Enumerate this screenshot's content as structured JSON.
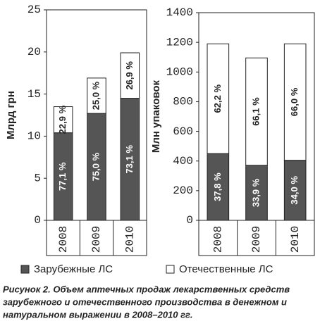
{
  "chart_data": [
    {
      "type": "stacked_bar",
      "y_label": "Млрд грн",
      "categories": [
        "2008",
        "2009",
        "2010"
      ],
      "series": [
        {
          "name": "Зарубежные ЛС",
          "color": "#555555",
          "values": [
            10.4,
            12.7,
            14.5
          ],
          "share_labels": [
            "77,1 %",
            "75,0 %",
            "73,1 %"
          ]
        },
        {
          "name": "Отечественные ЛС",
          "color": "#ffffff",
          "values": [
            3.1,
            4.2,
            5.4
          ],
          "share_labels": [
            "22,9 %",
            "25,0 %",
            "26,9 %"
          ]
        }
      ],
      "ylim": [
        0,
        25
      ],
      "yticks": [
        0,
        5,
        10,
        15,
        20,
        25
      ]
    },
    {
      "type": "stacked_bar",
      "y_label": "Млн упаковок",
      "categories": [
        "2008",
        "2009",
        "2010"
      ],
      "series": [
        {
          "color": "#555555",
          "values": [
            450,
            371,
            405
          ],
          "share_labels": [
            "37,8 %",
            "33,9 %",
            "34,0 %"
          ]
        },
        {
          "color": "#ffffff",
          "values": [
            740,
            724,
            785
          ],
          "share_labels": [
            "62,2 %",
            "66,1 %",
            "66,0 %"
          ]
        }
      ],
      "ylim": [
        0,
        1400
      ],
      "yticks": [
        0,
        200,
        400,
        600,
        800,
        1000,
        1200,
        1400
      ]
    }
  ],
  "caption": [
    "Рисунок 2. Объем аптечных продаж лекарственных средств",
    "зарубежного и отечественного производства в денежном и",
    "натуральном выражении в 2008–2010 гг."
  ]
}
